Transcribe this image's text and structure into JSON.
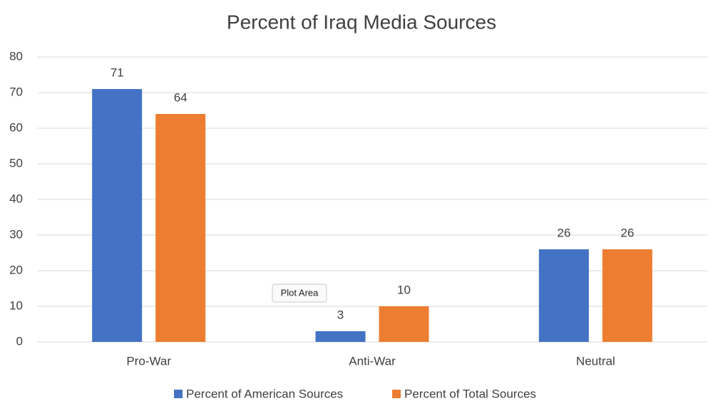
{
  "chart_data": {
    "type": "bar",
    "title": "Percent of Iraq Media Sources",
    "categories": [
      "Pro-War",
      "Anti-War",
      "Neutral"
    ],
    "series": [
      {
        "name": "Percent of American Sources",
        "color": "#4472c4",
        "values": [
          71,
          3,
          26
        ]
      },
      {
        "name": "Percent of Total Sources",
        "color": "#ed7d31",
        "values": [
          64,
          10,
          26
        ]
      }
    ],
    "ylim": [
      0,
      80
    ],
    "yticks": [
      0,
      10,
      20,
      30,
      40,
      50,
      60,
      70,
      80
    ],
    "grid": true,
    "legend": "bottom",
    "tooltip": "Plot Area"
  }
}
